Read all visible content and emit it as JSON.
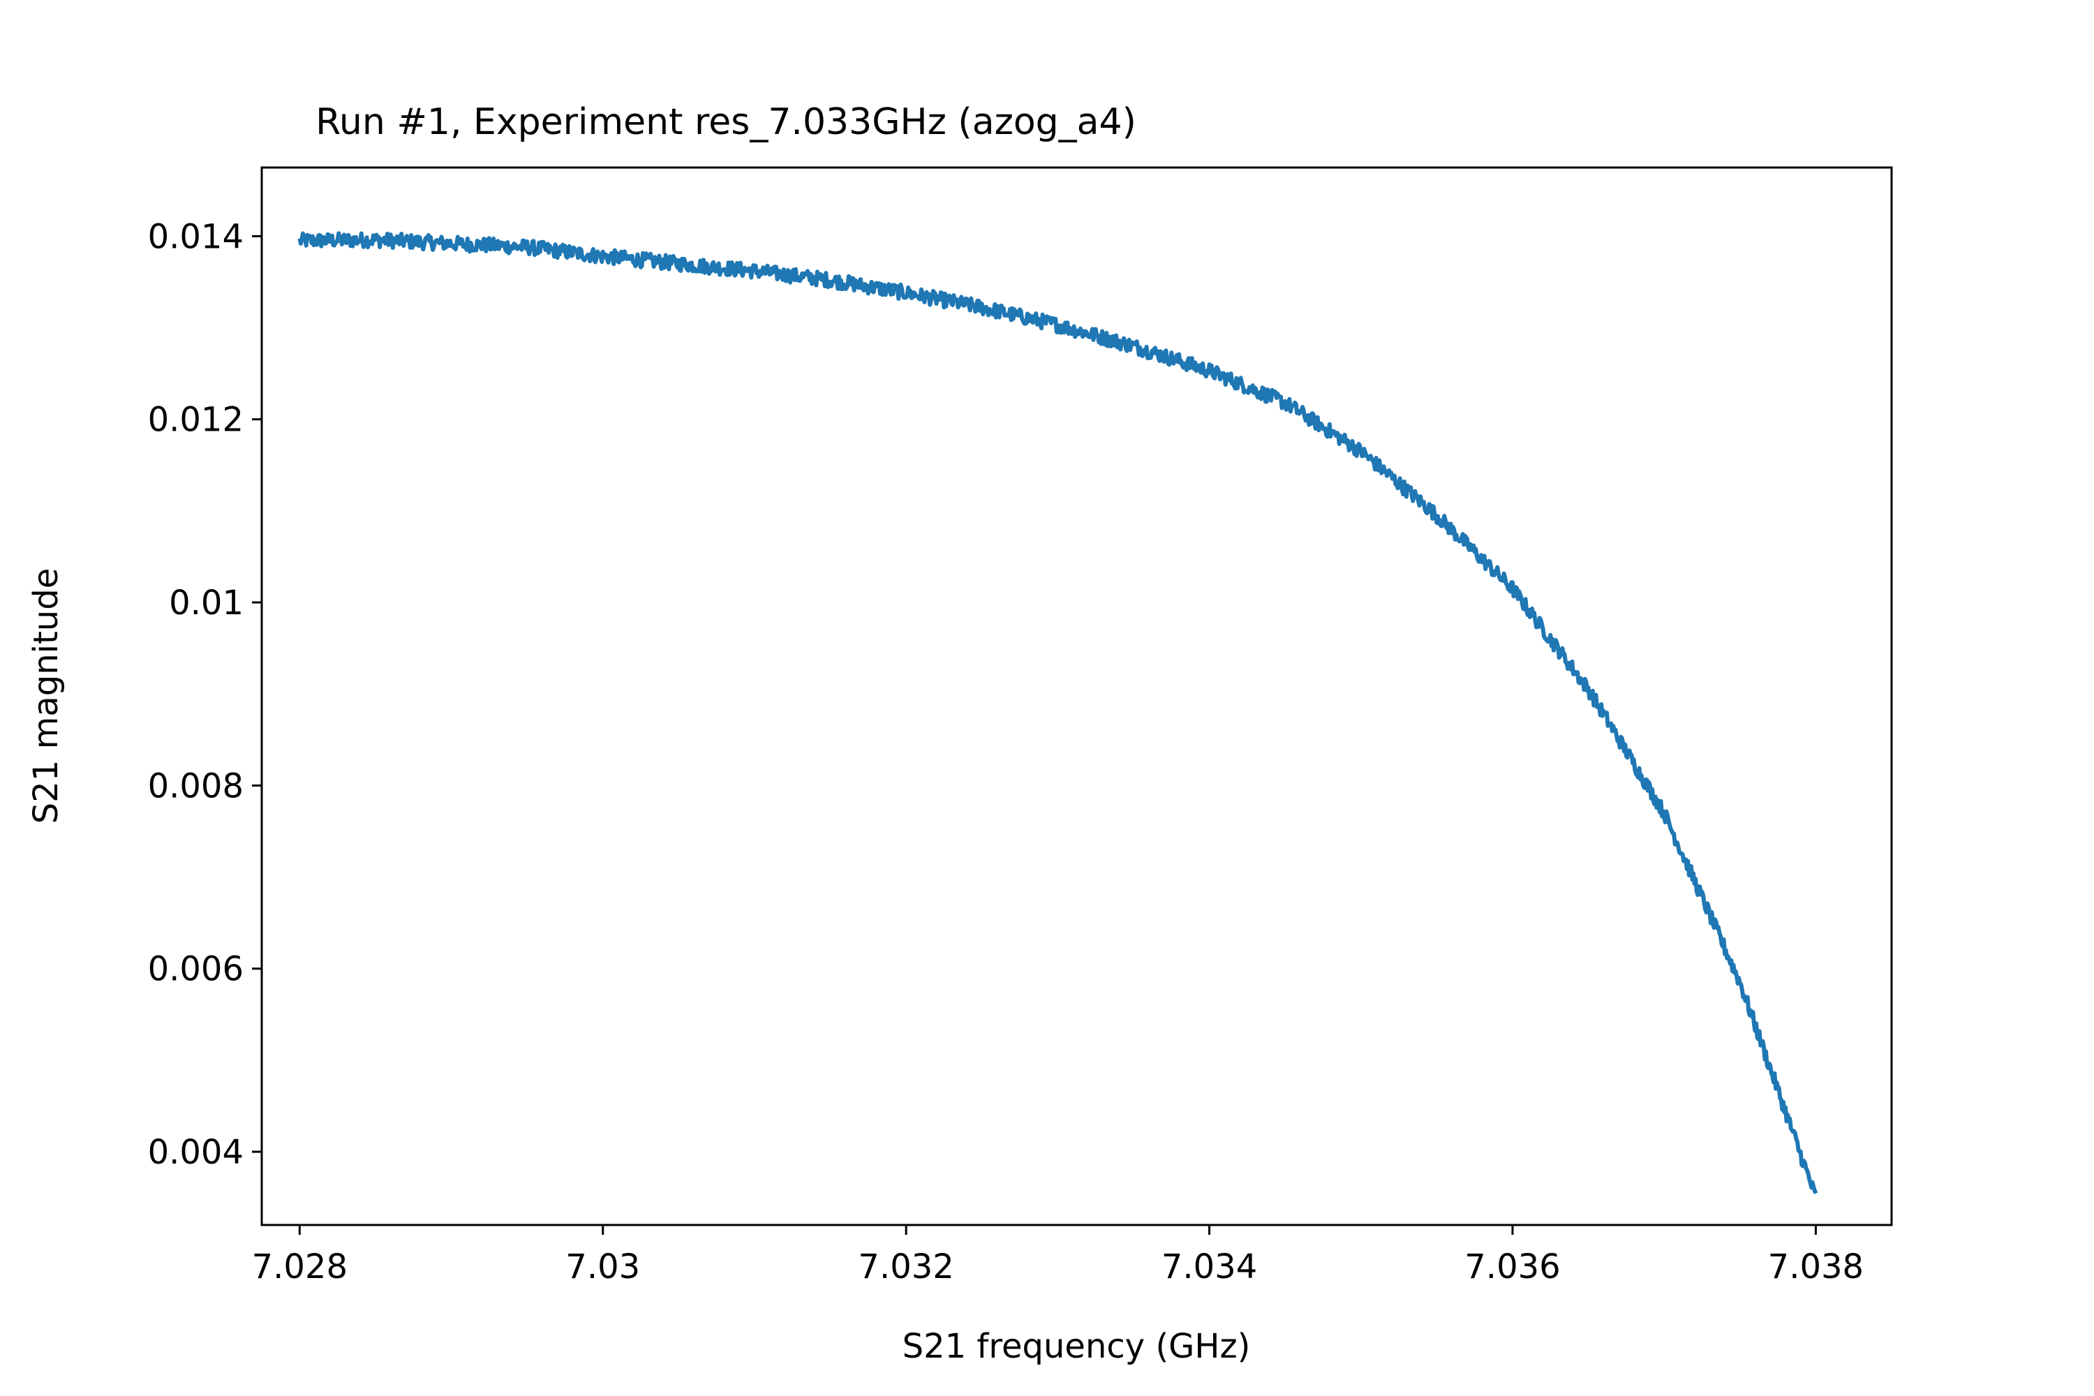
{
  "chart_data": {
    "type": "line",
    "title": "Run #1, Experiment res_7.033GHz (azog_a4)",
    "xlabel": "S21 frequency (GHz)",
    "ylabel": "S21 magnitude",
    "xlim": [
      7.02775,
      7.0385
    ],
    "ylim": [
      0.0032,
      0.01475
    ],
    "x_ticks": [
      7.028,
      7.03,
      7.032,
      7.034,
      7.036,
      7.038
    ],
    "x_tick_labels": [
      "7.028",
      "7.03",
      "7.032",
      "7.034",
      "7.036",
      "7.038"
    ],
    "y_ticks": [
      0.004,
      0.006,
      0.008,
      0.01,
      0.012,
      0.014
    ],
    "y_tick_labels": [
      "0.004",
      "0.006",
      "0.008",
      "0.01",
      "0.012",
      "0.014"
    ],
    "grid": false,
    "series": [
      {
        "color": "#1f77b4",
        "x": [
          7.028,
          7.0285,
          7.029,
          7.0295,
          7.03,
          7.0305,
          7.031,
          7.0315,
          7.032,
          7.0325,
          7.033,
          7.0335,
          7.034,
          7.0345,
          7.035,
          7.0355,
          7.036,
          7.0365,
          7.037,
          7.0375,
          7.038
        ],
        "y": [
          0.01395,
          0.01396,
          0.01392,
          0.01388,
          0.01378,
          0.0137,
          0.01362,
          0.01352,
          0.01338,
          0.01322,
          0.01303,
          0.0128,
          0.01253,
          0.01218,
          0.01165,
          0.01095,
          0.01015,
          0.00905,
          0.0077,
          0.00585,
          0.0035
        ]
      }
    ]
  }
}
